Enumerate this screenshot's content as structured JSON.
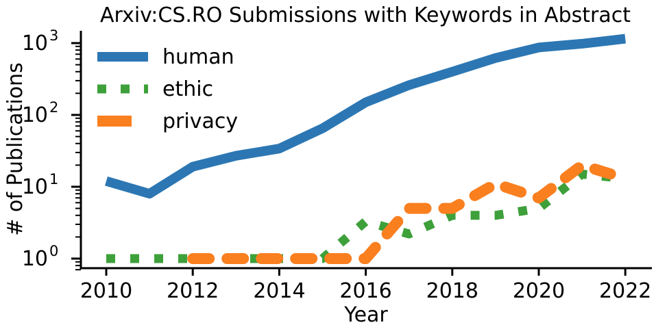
{
  "chart_data": {
    "type": "line",
    "title": "Arxiv:CS.RO Submissions with Keywords in Abstract",
    "xlabel": "Year",
    "ylabel": "# of Publications",
    "x_ticks": [
      2010,
      2012,
      2014,
      2016,
      2018,
      2020,
      2022
    ],
    "y_scale": "log",
    "y_ticks": [
      {
        "value": 1,
        "base": "10",
        "exp": "0"
      },
      {
        "value": 10,
        "base": "10",
        "exp": "1"
      },
      {
        "value": 100,
        "base": "10",
        "exp": "2"
      },
      {
        "value": 1000,
        "base": "10",
        "exp": "3"
      }
    ],
    "xlim": [
      2009.4,
      2022.6
    ],
    "ylim": [
      0.7,
      1500
    ],
    "grid": false,
    "legend_position": "top-left",
    "series": [
      {
        "name": "human",
        "color": "#2c77b3",
        "dash": "solid",
        "points": [
          [
            2010,
            12
          ],
          [
            2011,
            8
          ],
          [
            2012,
            19
          ],
          [
            2013,
            27
          ],
          [
            2014,
            34
          ],
          [
            2015,
            65
          ],
          [
            2016,
            150
          ],
          [
            2017,
            260
          ],
          [
            2018,
            400
          ],
          [
            2019,
            620
          ],
          [
            2020,
            870
          ],
          [
            2021,
            980
          ],
          [
            2022,
            1150
          ]
        ]
      },
      {
        "name": "ethic",
        "color": "#3da03a",
        "dash": "dotted",
        "points": [
          [
            2010,
            1
          ],
          [
            2015,
            1
          ],
          [
            2016,
            3.3
          ],
          [
            2017,
            2.2
          ],
          [
            2018,
            4
          ],
          [
            2019,
            4
          ],
          [
            2020,
            5
          ],
          [
            2021,
            15
          ],
          [
            2022,
            13
          ]
        ]
      },
      {
        "name": "privacy",
        "color": "#fa7f1f",
        "dash": "dashed",
        "points": [
          [
            2012,
            1
          ],
          [
            2015,
            1
          ],
          [
            2016,
            1
          ],
          [
            2017,
            5
          ],
          [
            2018,
            5
          ],
          [
            2019,
            11
          ],
          [
            2020,
            7
          ],
          [
            2021,
            20
          ],
          [
            2022,
            13
          ]
        ]
      }
    ]
  }
}
